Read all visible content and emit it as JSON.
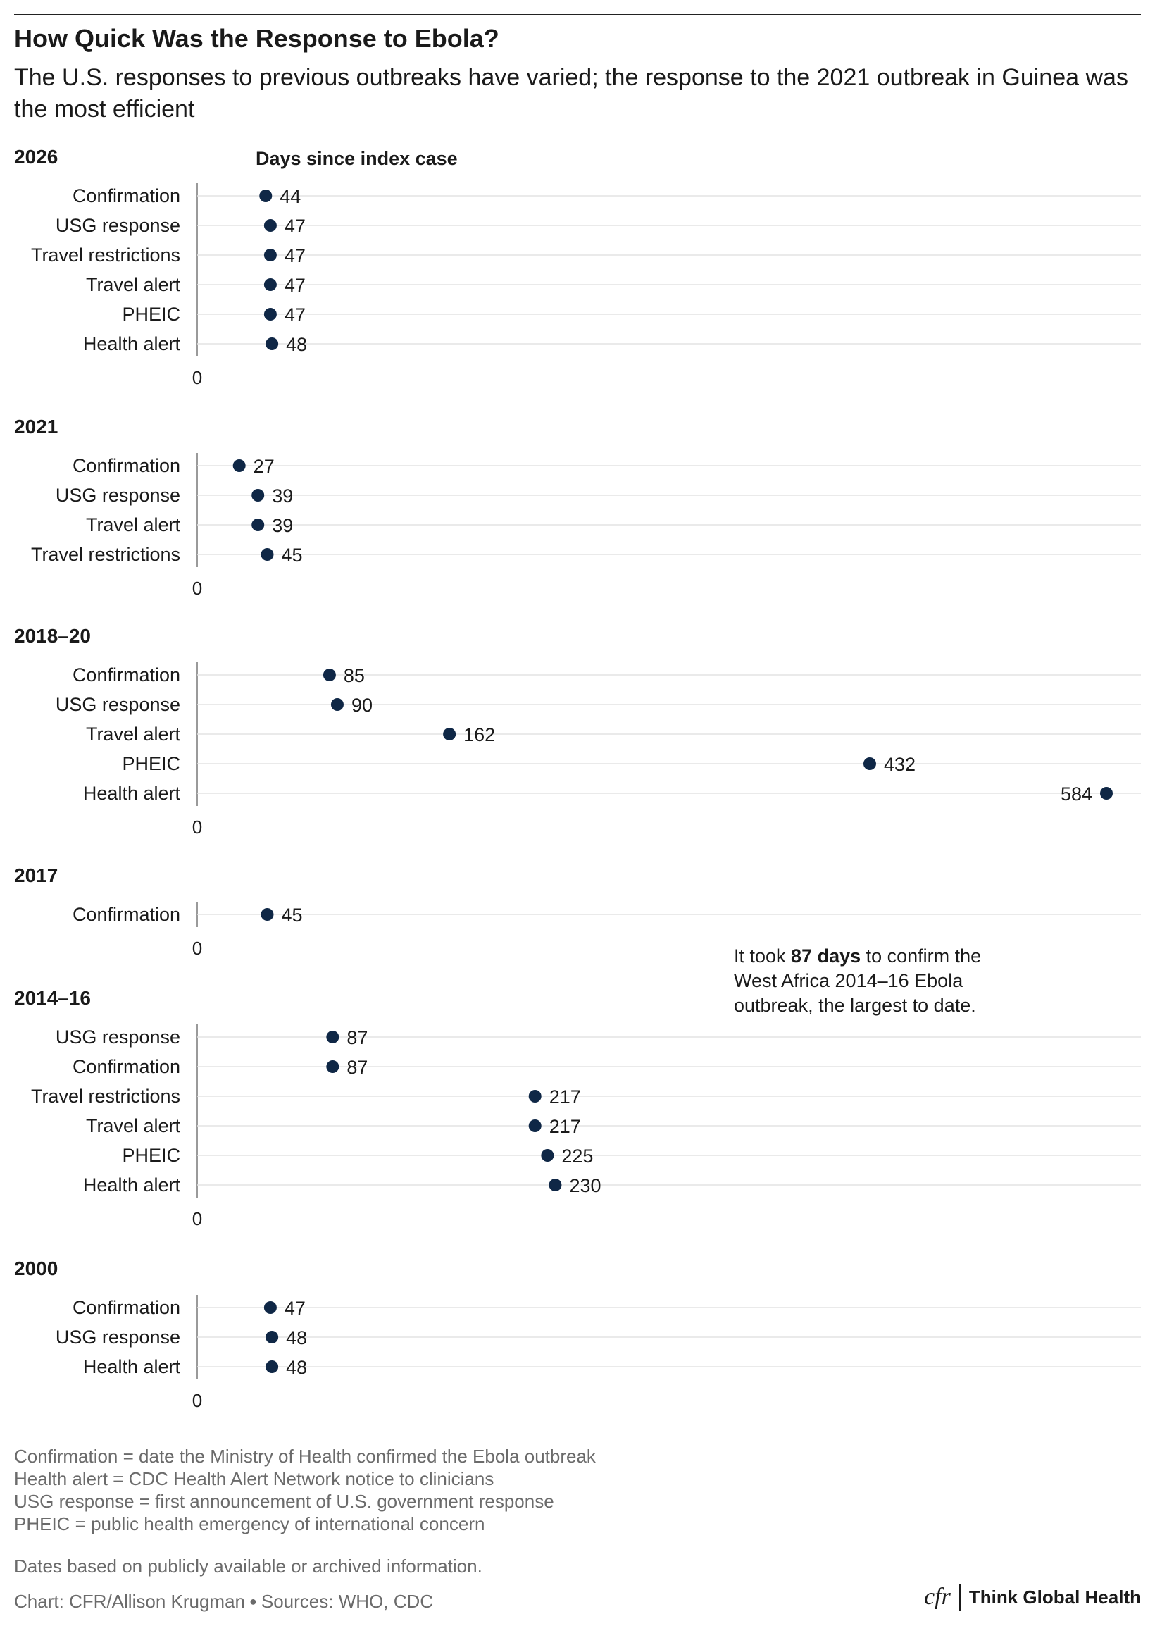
{
  "header": {
    "title": "How Quick Was the Response to Ebola?",
    "subtitle": "The U.S. responses to previous outbreaks have varied; the response to the 2021 outbreak in Guinea was the most efficient"
  },
  "chart_data": {
    "type": "scatter",
    "axis_title": "Days since index case",
    "xlim": [
      0,
      584
    ],
    "x_tick_label": "0",
    "grid": true,
    "point_color": "#0f2746",
    "groups": [
      {
        "name": "2026",
        "points": [
          {
            "label": "Confirmation",
            "value": 44
          },
          {
            "label": "USG response",
            "value": 47
          },
          {
            "label": "Travel restrictions",
            "value": 47
          },
          {
            "label": "Travel alert",
            "value": 47
          },
          {
            "label": "PHEIC",
            "value": 47
          },
          {
            "label": "Health alert",
            "value": 48
          }
        ]
      },
      {
        "name": "2021",
        "points": [
          {
            "label": "Confirmation",
            "value": 27
          },
          {
            "label": "USG response",
            "value": 39
          },
          {
            "label": "Travel alert",
            "value": 39
          },
          {
            "label": "Travel restrictions",
            "value": 45
          }
        ]
      },
      {
        "name": "2018–20",
        "points": [
          {
            "label": "Confirmation",
            "value": 85
          },
          {
            "label": "USG response",
            "value": 90
          },
          {
            "label": "Travel alert",
            "value": 162
          },
          {
            "label": "PHEIC",
            "value": 432
          },
          {
            "label": "Health alert",
            "value": 584
          }
        ]
      },
      {
        "name": "2017",
        "points": [
          {
            "label": "Confirmation",
            "value": 45
          }
        ]
      },
      {
        "name": "2014–16",
        "points": [
          {
            "label": "USG response",
            "value": 87
          },
          {
            "label": "Confirmation",
            "value": 87
          },
          {
            "label": "Travel restrictions",
            "value": 217
          },
          {
            "label": "Travel alert",
            "value": 217
          },
          {
            "label": "PHEIC",
            "value": 225
          },
          {
            "label": "Health alert",
            "value": 230
          }
        ]
      },
      {
        "name": "2000",
        "points": [
          {
            "label": "Confirmation",
            "value": 47
          },
          {
            "label": "USG response",
            "value": 48
          },
          {
            "label": "Health alert",
            "value": 48
          }
        ]
      }
    ],
    "annotation": {
      "before": "It took ",
      "bold": "87 days",
      "after_line1": " to confirm the",
      "line2": "West Africa 2014–16 Ebola",
      "line3": "outbreak, the largest to date."
    }
  },
  "footnotes": [
    "Confirmation = date the Ministry of Health confirmed the Ebola outbreak",
    "Health alert = CDC Health Alert Network notice to clinicians",
    "USG response = first announcement of U.S. government response",
    "PHEIC = public health emergency of international concern"
  ],
  "note": "Dates based on publicly available or archived information.",
  "credit": {
    "chart": "Chart: CFR/Allison Krugman",
    "sources": "Sources: WHO, CDC"
  },
  "brand": {
    "logo": "cfr",
    "name": "Think Global Health"
  }
}
